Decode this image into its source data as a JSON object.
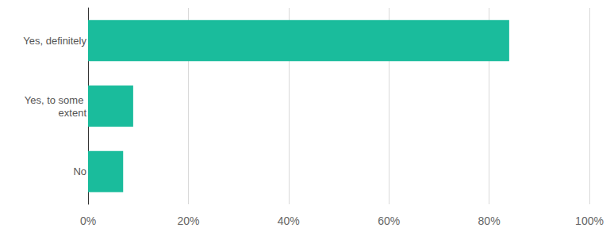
{
  "chart_data": {
    "type": "bar",
    "orientation": "horizontal",
    "categories": [
      "Yes, definitely",
      "Yes, to some extent",
      "No"
    ],
    "values": [
      84,
      9,
      7
    ],
    "color": "#1abc9c",
    "xlim": [
      0,
      100
    ],
    "xticks": [
      {
        "value": 0,
        "label": "0%"
      },
      {
        "value": 20,
        "label": "20%"
      },
      {
        "value": 40,
        "label": "40%"
      },
      {
        "value": 60,
        "label": "60%"
      },
      {
        "value": 80,
        "label": "80%"
      },
      {
        "value": 100,
        "label": "100%"
      }
    ],
    "grid": true
  }
}
